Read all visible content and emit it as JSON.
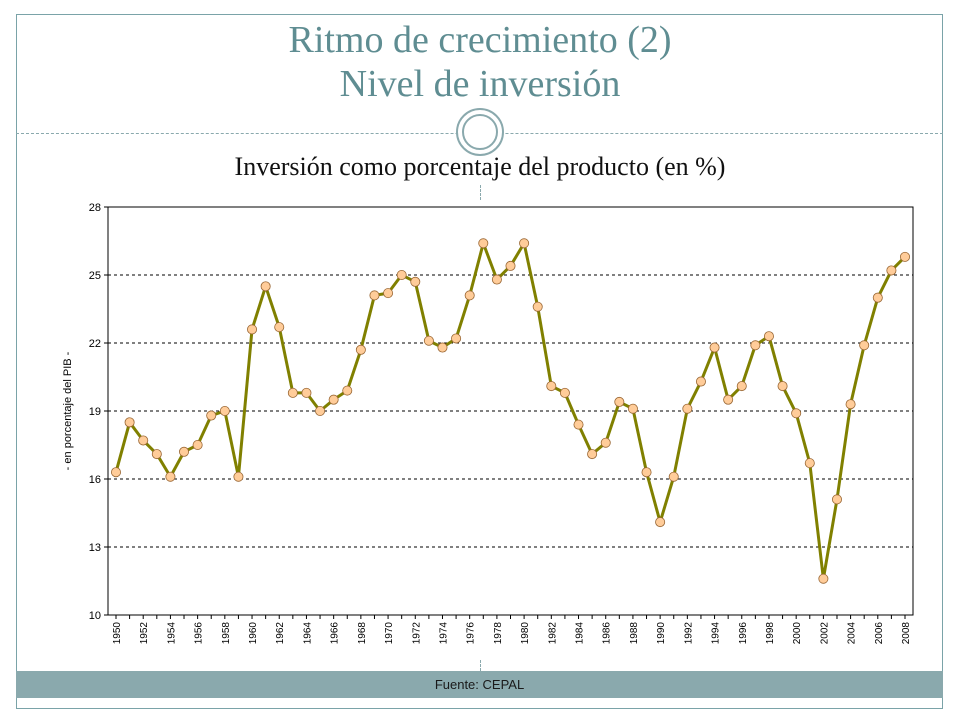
{
  "slide": {
    "title_line1": "Ritmo de crecimiento (2)",
    "title_line2": "Nivel de inversión",
    "subtitle": "Inversión como porcentaje del producto (en %)",
    "footer": "Fuente: CEPAL"
  },
  "colors": {
    "accent": "#5f8d92",
    "line": "#808000",
    "marker_fill": "#ffcc99",
    "marker_stroke": "#996633",
    "footer_band": "#8aa9ad"
  },
  "chart_data": {
    "type": "line",
    "title": "Inversión como porcentaje del producto (en %)",
    "xlabel": "",
    "ylabel": "- en porcentaje del PIB -",
    "ylim": [
      10,
      28
    ],
    "yticks": [
      10,
      13,
      16,
      19,
      22,
      25,
      28
    ],
    "grid": "horizontal dashed",
    "legend": "none",
    "x": [
      1950,
      1951,
      1952,
      1953,
      1954,
      1955,
      1956,
      1957,
      1958,
      1959,
      1960,
      1961,
      1962,
      1963,
      1964,
      1965,
      1966,
      1967,
      1968,
      1969,
      1970,
      1971,
      1972,
      1973,
      1974,
      1975,
      1976,
      1977,
      1978,
      1979,
      1980,
      1981,
      1982,
      1983,
      1984,
      1985,
      1986,
      1987,
      1988,
      1989,
      1990,
      1991,
      1992,
      1993,
      1994,
      1995,
      1996,
      1997,
      1998,
      1999,
      2000,
      2001,
      2002,
      2003,
      2004,
      2005,
      2006,
      2007,
      2008
    ],
    "xtick_labels": [
      "1950",
      "1952",
      "1954",
      "1956",
      "1958",
      "1960",
      "1962",
      "1964",
      "1966",
      "1968",
      "1970",
      "1972",
      "1974",
      "1976",
      "1978",
      "1980",
      "1982",
      "1984",
      "1986",
      "1988",
      "1990",
      "1992",
      "1994",
      "1996",
      "1998",
      "2000",
      "2002",
      "2004",
      "2006",
      "2008"
    ],
    "values": [
      16.3,
      18.5,
      17.7,
      17.1,
      16.1,
      17.2,
      17.5,
      18.8,
      19.0,
      16.1,
      22.6,
      24.5,
      22.7,
      19.8,
      19.8,
      19.0,
      19.5,
      19.9,
      21.7,
      24.1,
      24.2,
      25.0,
      24.7,
      22.1,
      21.8,
      22.2,
      24.1,
      26.4,
      24.8,
      25.4,
      26.4,
      23.6,
      20.1,
      19.8,
      18.4,
      17.1,
      17.6,
      19.4,
      19.1,
      16.3,
      14.1,
      16.1,
      19.1,
      20.3,
      21.8,
      19.5,
      20.1,
      21.9,
      22.3,
      20.1,
      18.9,
      16.7,
      11.6,
      15.1,
      19.3,
      21.9,
      24.0,
      25.2,
      25.8
    ]
  }
}
